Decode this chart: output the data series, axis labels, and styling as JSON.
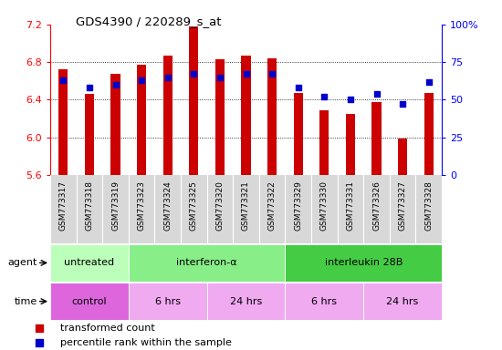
{
  "title": "GDS4390 / 220289_s_at",
  "samples": [
    "GSM773317",
    "GSM773318",
    "GSM773319",
    "GSM773323",
    "GSM773324",
    "GSM773325",
    "GSM773320",
    "GSM773321",
    "GSM773322",
    "GSM773329",
    "GSM773330",
    "GSM773331",
    "GSM773326",
    "GSM773327",
    "GSM773328"
  ],
  "transformed_count": [
    6.72,
    6.46,
    6.68,
    6.77,
    6.87,
    7.18,
    6.83,
    6.87,
    6.84,
    6.47,
    6.29,
    6.25,
    6.38,
    5.99,
    6.47
  ],
  "percentile_rank": [
    63,
    58,
    60,
    63,
    65,
    67,
    65,
    67,
    67,
    58,
    52,
    50,
    54,
    47,
    62
  ],
  "y_min": 5.6,
  "y_max": 7.2,
  "y_ticks": [
    5.6,
    6.0,
    6.4,
    6.8,
    7.2
  ],
  "right_y_ticks": [
    0,
    25,
    50,
    75,
    100
  ],
  "right_y_labels": [
    "0",
    "25",
    "50",
    "75",
    "100%"
  ],
  "bar_color": "#cc0000",
  "dot_color": "#0000cc",
  "agent_groups": [
    {
      "label": "untreated",
      "start": 0,
      "end": 3,
      "color": "#b8f0b8"
    },
    {
      "label": "interferon-α",
      "start": 3,
      "end": 9,
      "color": "#88ee88"
    },
    {
      "label": "interleukin 28B",
      "start": 9,
      "end": 15,
      "color": "#44cc44"
    }
  ],
  "time_groups": [
    {
      "label": "control",
      "start": 0,
      "end": 3,
      "color": "#ee77ee"
    },
    {
      "label": "6 hrs",
      "start": 3,
      "end": 6,
      "color": "#f0b0f0"
    },
    {
      "label": "24 hrs",
      "start": 6,
      "end": 9,
      "color": "#f0b0f0"
    },
    {
      "label": "6 hrs",
      "start": 9,
      "end": 12,
      "color": "#f0b0f0"
    },
    {
      "label": "24 hrs",
      "start": 12,
      "end": 15,
      "color": "#f0b0f0"
    }
  ],
  "legend_items": [
    {
      "color": "#cc0000",
      "label": "transformed count"
    },
    {
      "color": "#0000cc",
      "label": "percentile rank within the sample"
    }
  ],
  "gridline_yticks": [
    6.0,
    6.4,
    6.8
  ],
  "sample_bg_color": "#d8d8d8",
  "left_label_color": "#888888"
}
